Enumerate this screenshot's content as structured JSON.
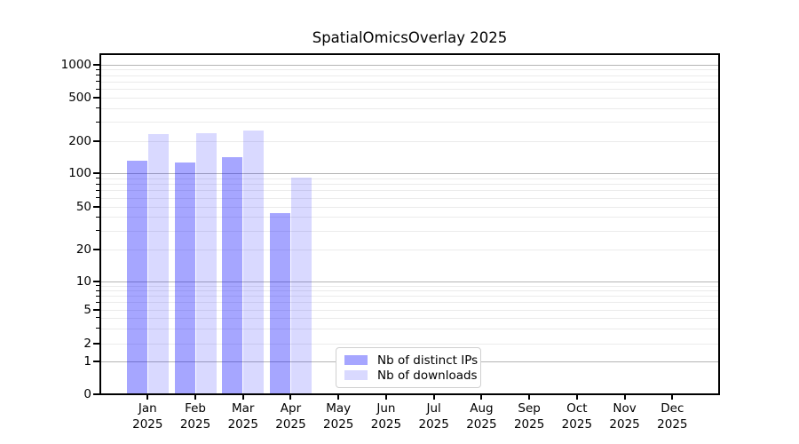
{
  "chart_data": {
    "type": "bar",
    "title": "SpatialOmicsOverlay 2025",
    "categories": [
      "Jan 2025",
      "Feb 2025",
      "Mar 2025",
      "Apr 2025",
      "May 2025",
      "Jun 2025",
      "Jul 2025",
      "Aug 2025",
      "Sep 2025",
      "Oct 2025",
      "Nov 2025",
      "Dec 2025"
    ],
    "series": [
      {
        "name": "Nb of distinct IPs",
        "color": "rgba(0,0,255,0.35)",
        "values": [
          130,
          125,
          140,
          43,
          null,
          null,
          null,
          null,
          null,
          null,
          null,
          null
        ]
      },
      {
        "name": "Nb of downloads",
        "color": "rgba(0,0,255,0.15)",
        "values": [
          230,
          235,
          250,
          92,
          null,
          null,
          null,
          null,
          null,
          null,
          null,
          null
        ]
      }
    ],
    "xlabel": "",
    "ylabel": "",
    "yaxis": {
      "scale": "symlog",
      "ticks": [
        0,
        1,
        2,
        5,
        10,
        20,
        50,
        100,
        200,
        500,
        1000
      ],
      "range": [
        0,
        1235
      ]
    },
    "grid": {
      "enabled": true,
      "major_color": "#b5b5b5",
      "minor_color": "#ebebeb"
    },
    "legend": {
      "position": "lower-center",
      "border_color": "#d0d0d0"
    }
  }
}
